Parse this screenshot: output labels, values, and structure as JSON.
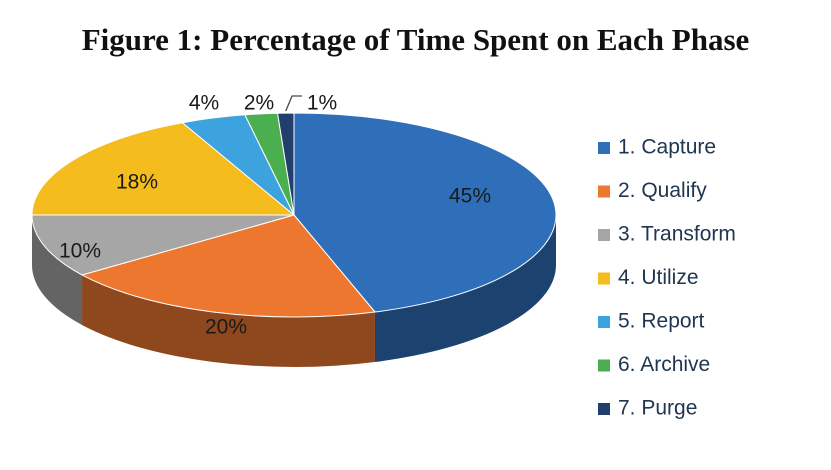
{
  "chart_data": {
    "type": "pie",
    "title": "Figure 1: Percentage of Time Spent on Each Phase",
    "legend_position": "right",
    "style": "3d",
    "slices": [
      {
        "label": "1. Capture",
        "value": 45,
        "value_label": "45%",
        "color": "#2f6fba"
      },
      {
        "label": "2. Qualify",
        "value": 20,
        "value_label": "20%",
        "color": "#ee7730"
      },
      {
        "label": "3. Transform",
        "value": 10,
        "value_label": "10%",
        "color": "#a6a6a6"
      },
      {
        "label": "4. Utilize",
        "value": 18,
        "value_label": "18%",
        "color": "#f4bc1c"
      },
      {
        "label": "5. Report",
        "value": 4,
        "value_label": "4%",
        "color": "#3da3df"
      },
      {
        "label": "6. Archive",
        "value": 2,
        "value_label": "2%",
        "color": "#4caf4f"
      },
      {
        "label": "7. Purge",
        "value": 1,
        "value_label": "1%",
        "color": "#223e6d"
      }
    ]
  }
}
